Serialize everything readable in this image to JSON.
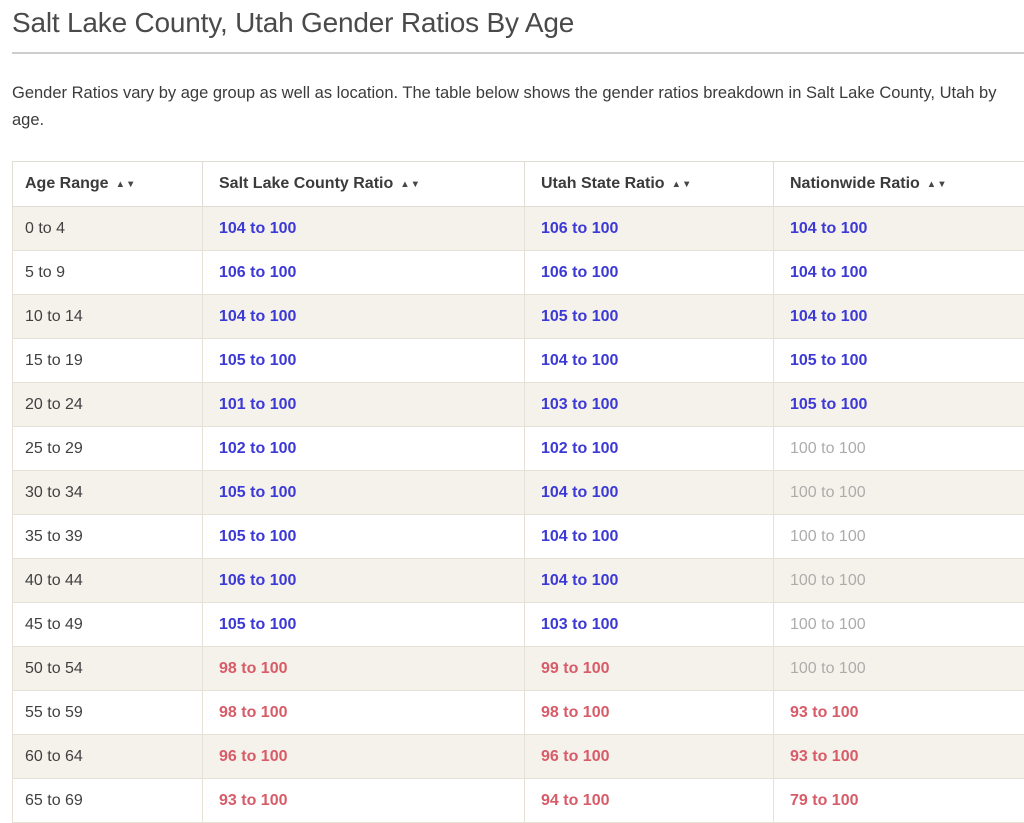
{
  "page": {
    "title": "Salt Lake County, Utah Gender Ratios By Age",
    "description": "Gender Ratios vary by age group as well as location. The table below shows the gender ratios breakdown in Salt Lake County, Utah by age."
  },
  "colors": {
    "more_males": "#3c39d5",
    "fewer_males": "#d85b68",
    "even": "#adacab",
    "stripe_row": "#f5f2ec"
  },
  "sort_icons": {
    "asc": "▲",
    "desc": "▼"
  },
  "table": {
    "columns": [
      {
        "key": "age",
        "label": "Age Range"
      },
      {
        "key": "slc",
        "label": "Salt Lake County Ratio"
      },
      {
        "key": "utah",
        "label": "Utah State Ratio"
      },
      {
        "key": "us",
        "label": "Nationwide Ratio"
      }
    ],
    "rows": [
      {
        "age": "0 to 4",
        "cells": [
          {
            "text": "104 to 100",
            "status": "high"
          },
          {
            "text": "106 to 100",
            "status": "high"
          },
          {
            "text": "104 to 100",
            "status": "high"
          }
        ]
      },
      {
        "age": "5 to 9",
        "cells": [
          {
            "text": "106 to 100",
            "status": "high"
          },
          {
            "text": "106 to 100",
            "status": "high"
          },
          {
            "text": "104 to 100",
            "status": "high"
          }
        ]
      },
      {
        "age": "10 to 14",
        "cells": [
          {
            "text": "104 to 100",
            "status": "high"
          },
          {
            "text": "105 to 100",
            "status": "high"
          },
          {
            "text": "104 to 100",
            "status": "high"
          }
        ]
      },
      {
        "age": "15 to 19",
        "cells": [
          {
            "text": "105 to 100",
            "status": "high"
          },
          {
            "text": "104 to 100",
            "status": "high"
          },
          {
            "text": "105 to 100",
            "status": "high"
          }
        ]
      },
      {
        "age": "20 to 24",
        "cells": [
          {
            "text": "101 to 100",
            "status": "high"
          },
          {
            "text": "103 to 100",
            "status": "high"
          },
          {
            "text": "105 to 100",
            "status": "high"
          }
        ]
      },
      {
        "age": "25 to 29",
        "cells": [
          {
            "text": "102 to 100",
            "status": "high"
          },
          {
            "text": "102 to 100",
            "status": "high"
          },
          {
            "text": "100 to 100",
            "status": "neutral"
          }
        ]
      },
      {
        "age": "30 to 34",
        "cells": [
          {
            "text": "105 to 100",
            "status": "high"
          },
          {
            "text": "104 to 100",
            "status": "high"
          },
          {
            "text": "100 to 100",
            "status": "neutral"
          }
        ]
      },
      {
        "age": "35 to 39",
        "cells": [
          {
            "text": "105 to 100",
            "status": "high"
          },
          {
            "text": "104 to 100",
            "status": "high"
          },
          {
            "text": "100 to 100",
            "status": "neutral"
          }
        ]
      },
      {
        "age": "40 to 44",
        "cells": [
          {
            "text": "106 to 100",
            "status": "high"
          },
          {
            "text": "104 to 100",
            "status": "high"
          },
          {
            "text": "100 to 100",
            "status": "neutral"
          }
        ]
      },
      {
        "age": "45 to 49",
        "cells": [
          {
            "text": "105 to 100",
            "status": "high"
          },
          {
            "text": "103 to 100",
            "status": "high"
          },
          {
            "text": "100 to 100",
            "status": "neutral"
          }
        ]
      },
      {
        "age": "50 to 54",
        "cells": [
          {
            "text": "98 to 100",
            "status": "low"
          },
          {
            "text": "99 to 100",
            "status": "low"
          },
          {
            "text": "100 to 100",
            "status": "neutral"
          }
        ]
      },
      {
        "age": "55 to 59",
        "cells": [
          {
            "text": "98 to 100",
            "status": "low"
          },
          {
            "text": "98 to 100",
            "status": "low"
          },
          {
            "text": "93 to 100",
            "status": "low"
          }
        ]
      },
      {
        "age": "60 to 64",
        "cells": [
          {
            "text": "96 to 100",
            "status": "low"
          },
          {
            "text": "96 to 100",
            "status": "low"
          },
          {
            "text": "93 to 100",
            "status": "low"
          }
        ]
      },
      {
        "age": "65 to 69",
        "cells": [
          {
            "text": "93 to 100",
            "status": "low"
          },
          {
            "text": "94 to 100",
            "status": "low"
          },
          {
            "text": "79 to 100",
            "status": "low"
          }
        ]
      }
    ]
  }
}
